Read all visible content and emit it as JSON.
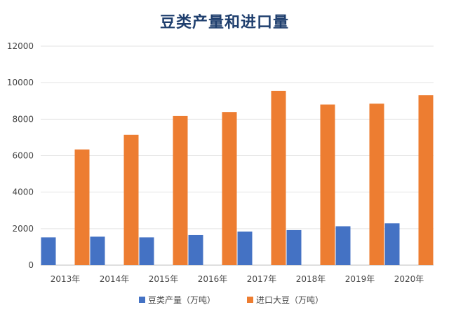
{
  "chart_data": {
    "type": "bar",
    "title": "豆类产量和进口量",
    "categories": [
      "2013年",
      "2014年",
      "2015年",
      "2016年",
      "2017年",
      "2018年",
      "2019年",
      "2020年"
    ],
    "series": [
      {
        "name": "豆类产量（万吨）",
        "values": [
          1520,
          1560,
          1520,
          1650,
          1840,
          1920,
          2130,
          2290
        ]
      },
      {
        "name": "进口大豆（万吨）",
        "values": [
          6340,
          7140,
          8170,
          8390,
          9550,
          8800,
          8850,
          9310
        ]
      }
    ],
    "ylim": [
      0,
      12000
    ],
    "yticks": [
      0,
      2000,
      4000,
      6000,
      8000,
      10000,
      12000
    ],
    "grid": true,
    "legend_position": "bottom",
    "colors": {
      "series": [
        "#4472c4",
        "#ed7d31"
      ]
    },
    "xlabel": "",
    "ylabel": ""
  }
}
